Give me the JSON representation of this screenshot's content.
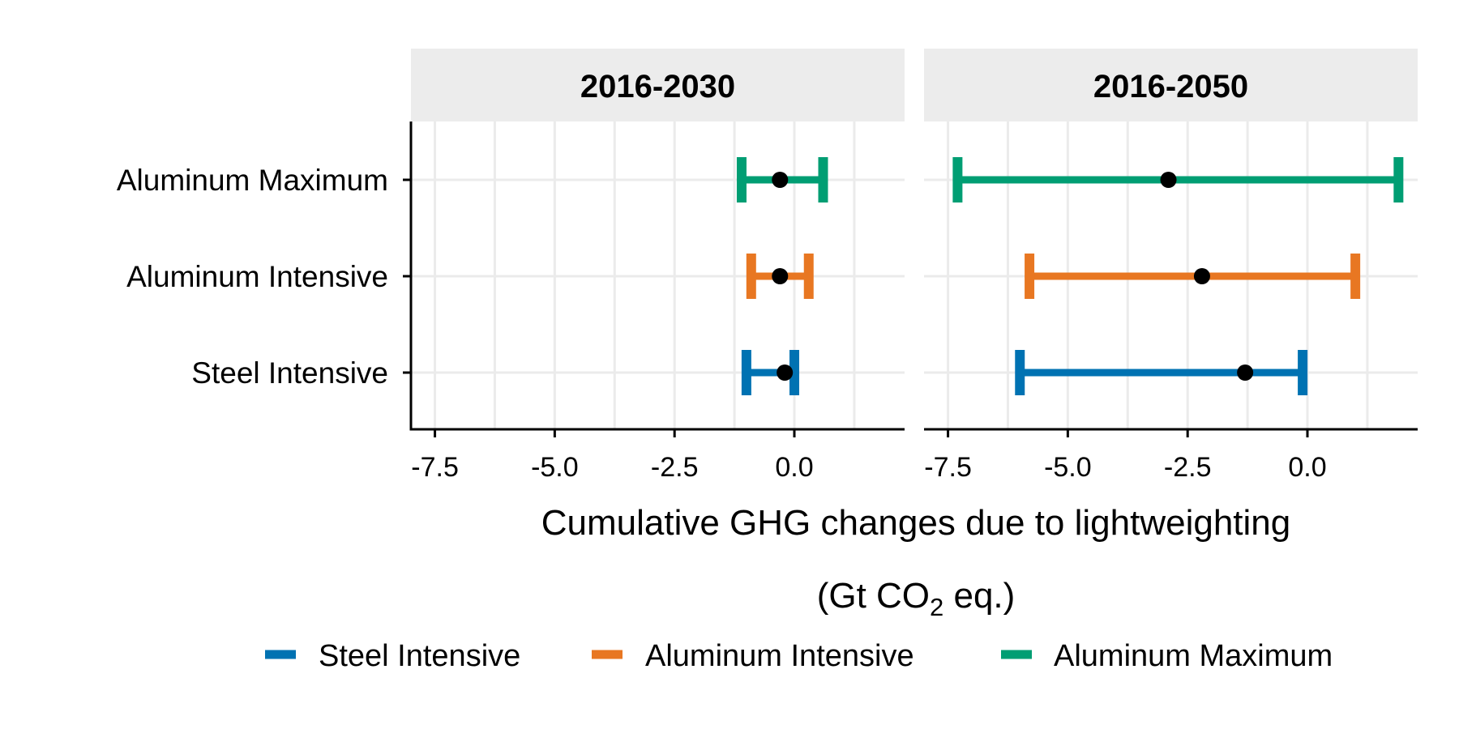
{
  "chart_data": {
    "type": "errorbar",
    "xlabel_line1": "Cumulative GHG changes due to lightweighting",
    "xlabel_line2_prefix": "(Gt CO",
    "xlabel_line2_sub": "2",
    "xlabel_line2_suffix": " eq.)",
    "categories": [
      "Aluminum Maximum",
      "Aluminum Intensive",
      "Steel Intensive"
    ],
    "xlim": [
      -8,
      2.3
    ],
    "xticks": [
      -7.5,
      -5.0,
      -2.5,
      0.0
    ],
    "xtick_labels": [
      "-7.5",
      "-5.0",
      "-2.5",
      "0.0"
    ],
    "grid": true,
    "legend_position": "bottom",
    "colors": {
      "Steel Intensive": "#0072B2",
      "Aluminum Intensive": "#E87722",
      "Aluminum Maximum": "#009E73",
      "point": "#000000"
    },
    "legend": [
      "Steel Intensive",
      "Aluminum Intensive",
      "Aluminum Maximum"
    ],
    "panels": [
      {
        "label": "2016-2030",
        "series": [
          {
            "name": "Aluminum Maximum",
            "low": -1.1,
            "mid": -0.3,
            "high": 0.6
          },
          {
            "name": "Aluminum Intensive",
            "low": -0.9,
            "mid": -0.3,
            "high": 0.3
          },
          {
            "name": "Steel Intensive",
            "low": -1.0,
            "mid": -0.2,
            "high": 0.0
          }
        ]
      },
      {
        "label": "2016-2050",
        "series": [
          {
            "name": "Aluminum Maximum",
            "low": -7.3,
            "mid": -2.9,
            "high": 1.9
          },
          {
            "name": "Aluminum Intensive",
            "low": -5.8,
            "mid": -2.2,
            "high": 1.0
          },
          {
            "name": "Steel Intensive",
            "low": -6.0,
            "mid": -1.3,
            "high": -0.1
          }
        ]
      }
    ]
  }
}
